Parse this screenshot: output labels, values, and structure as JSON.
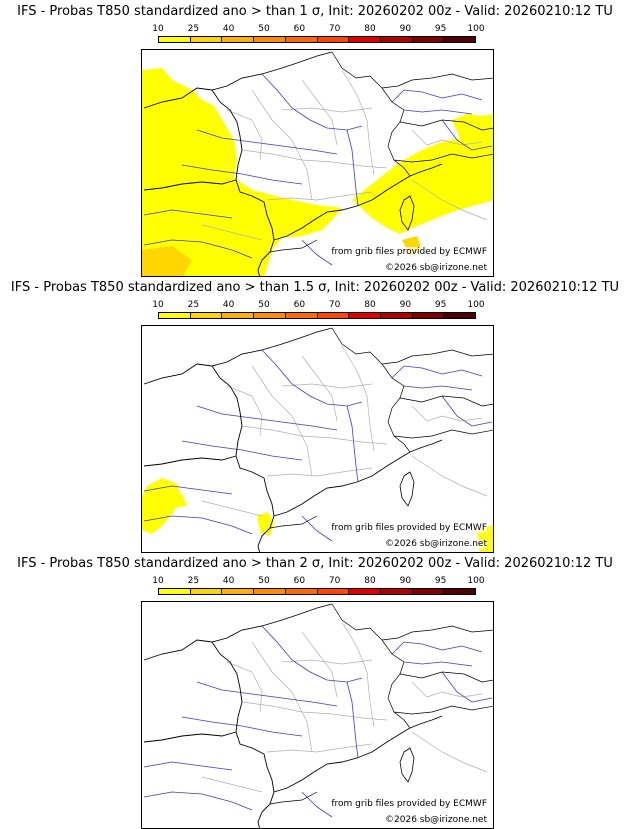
{
  "colorbar": {
    "labels": [
      "10",
      "25",
      "40",
      "50",
      "60",
      "70",
      "80",
      "90",
      "95",
      "100"
    ],
    "colors": [
      "#ffff00",
      "#ffd700",
      "#ffb000",
      "#ff8c00",
      "#ff6a00",
      "#ff4500",
      "#e00000",
      "#b00000",
      "#800000",
      "#500000"
    ]
  },
  "credits": {
    "grib": "from grib files provided by ECMWF",
    "copyright": "©2026 sb@irizone.net"
  },
  "panels": [
    {
      "title": "IFS - Probas T850  standardized ano > than 1 σ, Init: 20260202 00z - Valid: 20260210:12 TU",
      "coverage": "large"
    },
    {
      "title": "IFS - Probas T850  standardized ano > than 1.5 σ, Init: 20260202 00z - Valid: 20260210:12 TU",
      "coverage": "small"
    },
    {
      "title": "IFS - Probas T850  standardized ano > than 2 σ, Init: 20260202 00z - Valid: 20260210:12 TU",
      "coverage": "none"
    }
  ]
}
